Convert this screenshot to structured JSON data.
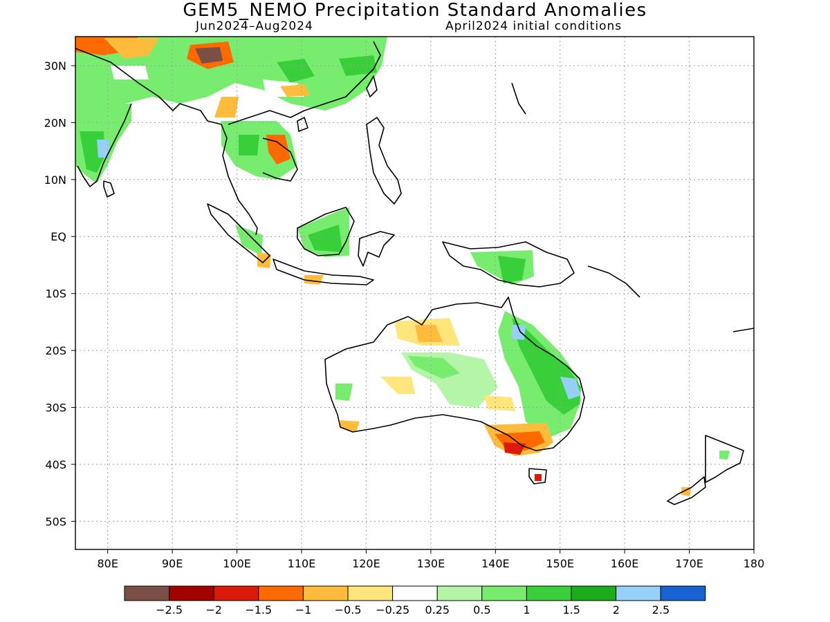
{
  "map": {
    "title": "GEM5_NEMO Precipitation Standard Anomalies",
    "period": "Jun2024–Aug2024",
    "initial_conditions": "April2024 initial conditions",
    "lon_range": [
      75,
      180
    ],
    "lat_range": [
      -55,
      35
    ],
    "lon_ticks": [
      "80E",
      "90E",
      "100E",
      "110E",
      "120E",
      "130E",
      "140E",
      "150E",
      "160E",
      "170E",
      "180"
    ],
    "lat_ticks": [
      "30N",
      "20N",
      "10N",
      "EQ",
      "10S",
      "20S",
      "30S",
      "40S",
      "50S"
    ],
    "grid": "dotted"
  },
  "colorbar": {
    "labels": [
      "−2.5",
      "−2",
      "−1.5",
      "−1",
      "−0.5",
      "−0.25",
      "0.25",
      "0.5",
      "1",
      "1.5",
      "2",
      "2.5"
    ],
    "colors": [
      "#7a4f45",
      "#a30000",
      "#dc1a0a",
      "#ff6a00",
      "#ffbc3c",
      "#ffe57c",
      "#ffffff",
      "#b4f5a8",
      "#78ec6e",
      "#38cf3a",
      "#1cab1a",
      "#96d0f8",
      "#1862d2"
    ]
  }
}
